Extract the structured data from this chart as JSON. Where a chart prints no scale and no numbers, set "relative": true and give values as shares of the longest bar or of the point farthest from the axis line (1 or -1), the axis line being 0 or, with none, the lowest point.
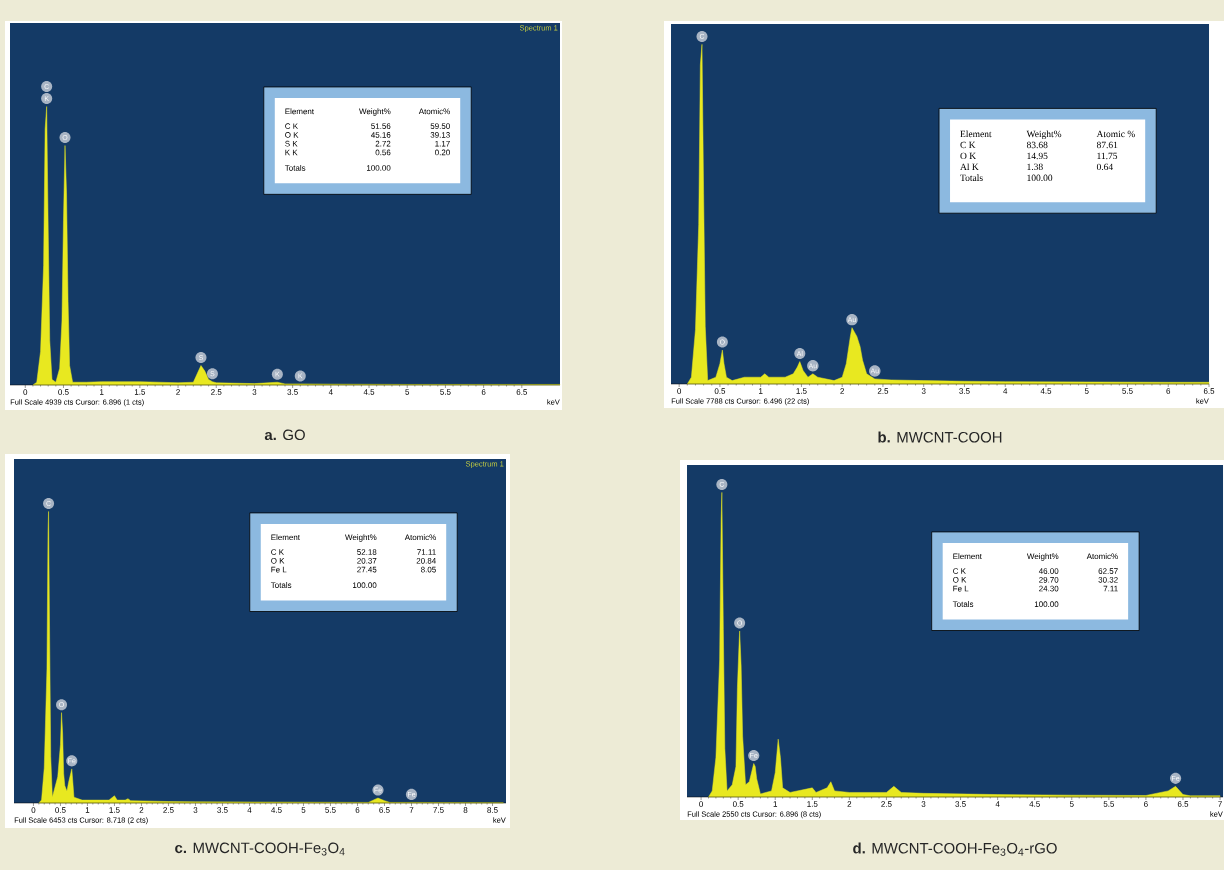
{
  "chart_data": [
    {
      "type": "area",
      "title": "**a.** GO",
      "subtitle": "Spectrum 1",
      "xlabel": "keV",
      "relative": true,
      "color": "#e8e820",
      "xlim": [
        -0.2,
        7.0
      ],
      "xticks": [
        0,
        0.5,
        1,
        1.5,
        2,
        2.5,
        3,
        3.5,
        4,
        4.5,
        5,
        5.5,
        6,
        6.5
      ],
      "x": [
        0.1,
        0.15,
        0.2,
        0.24,
        0.26,
        0.28,
        0.3,
        0.32,
        0.35,
        0.4,
        0.45,
        0.48,
        0.5,
        0.52,
        0.54,
        0.56,
        0.58,
        0.62,
        0.8,
        1.0,
        1.5,
        2.0,
        2.2,
        2.25,
        2.3,
        2.35,
        2.4,
        2.45,
        2.5,
        3.0,
        3.3,
        3.4,
        3.6,
        4.0,
        5.0,
        6.0,
        7.0
      ],
      "values": [
        0.0,
        0.01,
        0.12,
        0.43,
        0.92,
        1.0,
        0.56,
        0.16,
        0.02,
        0.01,
        0.06,
        0.23,
        0.59,
        0.86,
        0.69,
        0.3,
        0.07,
        0.01,
        0.01,
        0.012,
        0.012,
        0.008,
        0.01,
        0.04,
        0.07,
        0.05,
        0.02,
        0.012,
        0.008,
        0.005,
        0.01,
        0.004,
        0.004,
        0.003,
        0.002,
        0.002,
        0.002
      ],
      "annotations": [
        {
          "text": "K",
          "x": 0.28,
          "y": 1.0
        },
        {
          "text": "C",
          "x": 0.28,
          "y": 1.0
        },
        {
          "text": "O",
          "x": 0.52,
          "y": 0.86
        },
        {
          "text": "S",
          "x": 2.3,
          "y": 0.07
        },
        {
          "text": "S",
          "x": 2.45,
          "y": 0.012
        },
        {
          "text": "K",
          "x": 3.3,
          "y": 0.01
        },
        {
          "text": "K",
          "x": 3.6,
          "y": 0.004
        },
        "Full Scale 4939 cts Cursor: 6.896 (1 cts)",
        "Element",
        "Weight%",
        "Atomic%",
        "C K",
        "51.56",
        "59.50",
        "O K",
        "45.16",
        "39.13",
        "S K",
        "2.72",
        "1.17",
        "K K",
        "0.56",
        "0.20",
        "Totals",
        "100.00"
      ]
    },
    {
      "type": "area",
      "title": "**b.** MWCNT-COOH",
      "xlabel": "keV",
      "relative": true,
      "color": "#e8e820",
      "xlim": [
        -0.1,
        6.5
      ],
      "xticks": [
        0,
        0.5,
        1,
        1.5,
        2,
        2.5,
        3,
        3.5,
        4,
        4.5,
        5,
        5.5,
        6,
        6.5
      ],
      "x": [
        0.1,
        0.15,
        0.2,
        0.24,
        0.26,
        0.28,
        0.3,
        0.32,
        0.35,
        0.45,
        0.5,
        0.53,
        0.55,
        0.58,
        0.65,
        0.8,
        1.0,
        1.05,
        1.1,
        1.3,
        1.4,
        1.45,
        1.48,
        1.52,
        1.58,
        1.64,
        1.7,
        1.9,
        2.0,
        2.05,
        2.1,
        2.12,
        2.18,
        2.22,
        2.25,
        2.3,
        2.4,
        2.6,
        3.0,
        3.5,
        4.0,
        5.0,
        6.0,
        6.5
      ],
      "values": [
        0.0,
        0.02,
        0.16,
        0.47,
        0.94,
        1.0,
        0.56,
        0.17,
        0.01,
        0.02,
        0.06,
        0.1,
        0.06,
        0.02,
        0.01,
        0.02,
        0.02,
        0.03,
        0.02,
        0.02,
        0.03,
        0.05,
        0.066,
        0.04,
        0.02,
        0.03,
        0.02,
        0.01,
        0.02,
        0.06,
        0.14,
        0.166,
        0.14,
        0.11,
        0.07,
        0.03,
        0.015,
        0.012,
        0.01,
        0.008,
        0.007,
        0.006,
        0.005,
        0.005
      ],
      "annotations": [
        {
          "text": "C",
          "x": 0.28,
          "y": 1.0
        },
        {
          "text": "O",
          "x": 0.53,
          "y": 0.1
        },
        {
          "text": "Al",
          "x": 1.48,
          "y": 0.066
        },
        {
          "text": "Au",
          "x": 1.64,
          "y": 0.03
        },
        {
          "text": "Au",
          "x": 2.12,
          "y": 0.166
        },
        {
          "text": "Au",
          "x": 2.4,
          "y": 0.015
        },
        "Full Scale 7788 cts Cursor: 6.496 (22 cts)",
        "Element",
        "Weight%",
        "Atomic %",
        "C K",
        "83.68",
        "87.61",
        "O K",
        "14.95",
        "11.75",
        "Al K",
        "1.38",
        "0.64",
        "Totals",
        "100.00"
      ]
    },
    {
      "type": "area",
      "title": "**c.** MWCNT-COOH-Fe$_{3}$O$_{4}$",
      "subtitle": "Spectrum 1",
      "xlabel": "keV",
      "relative": true,
      "color": "#e8e820",
      "xlim": [
        -0.36,
        8.75
      ],
      "xticks": [
        0,
        0.5,
        1,
        1.5,
        2,
        2.5,
        3,
        3.5,
        4,
        4.5,
        5,
        5.5,
        6,
        6.5,
        7,
        7.5,
        8,
        8.5
      ],
      "x": [
        0.1,
        0.15,
        0.2,
        0.25,
        0.27,
        0.28,
        0.3,
        0.32,
        0.35,
        0.45,
        0.5,
        0.52,
        0.54,
        0.56,
        0.58,
        0.62,
        0.65,
        0.71,
        0.73,
        0.75,
        0.9,
        1.4,
        1.5,
        1.55,
        1.7,
        1.75,
        1.8,
        2.5,
        3.0,
        6.2,
        6.35,
        6.38,
        6.5,
        6.6,
        7.0,
        8.7
      ],
      "values": [
        0.0,
        0.01,
        0.12,
        0.46,
        0.93,
        1.0,
        0.56,
        0.16,
        0.02,
        0.09,
        0.2,
        0.31,
        0.24,
        0.1,
        0.06,
        0.04,
        0.07,
        0.117,
        0.07,
        0.02,
        0.01,
        0.01,
        0.025,
        0.01,
        0.01,
        0.015,
        0.008,
        0.005,
        0.004,
        0.002,
        0.015,
        0.017,
        0.008,
        0.002,
        0.002,
        0.001
      ],
      "annotations": [
        {
          "text": "C",
          "x": 0.28,
          "y": 1.0
        },
        {
          "text": "O",
          "x": 0.52,
          "y": 0.31
        },
        {
          "text": "Fe",
          "x": 0.71,
          "y": 0.117
        },
        {
          "text": "Fe",
          "x": 6.38,
          "y": 0.017
        },
        {
          "text": "Fe",
          "x": 7.0,
          "y": 0.002
        },
        "Full Scale 6453 cts Cursor: 8.718 (2 cts)",
        "Element",
        "Weight%",
        "Atomic%",
        "C K",
        "52.18",
        "71.11",
        "O K",
        "20.37",
        "20.84",
        "Fe L",
        "27.45",
        "8.05",
        "Totals",
        "100.00"
      ]
    },
    {
      "type": "area",
      "title": "**d.** MWCNT-COOH-Fe$_{3}$O$_{4}$-rGO",
      "xlabel": "keV",
      "relative": true,
      "color": "#e8e820",
      "xlim": [
        -0.19,
        7.04
      ],
      "xticks": [
        0,
        0.5,
        1,
        1.5,
        2,
        2.5,
        3,
        3.5,
        4,
        4.5,
        5,
        5.5,
        6,
        6.5,
        7
      ],
      "x": [
        0.1,
        0.15,
        0.2,
        0.25,
        0.27,
        0.28,
        0.3,
        0.32,
        0.35,
        0.42,
        0.47,
        0.49,
        0.51,
        0.52,
        0.54,
        0.56,
        0.6,
        0.65,
        0.71,
        0.73,
        0.75,
        0.8,
        0.95,
        1.0,
        1.04,
        1.07,
        1.1,
        1.2,
        1.5,
        1.55,
        1.7,
        1.75,
        1.8,
        2.0,
        2.5,
        2.6,
        2.7,
        3.0,
        4.0,
        5.0,
        6.0,
        6.3,
        6.4,
        6.5,
        6.6,
        7.0
      ],
      "values": [
        0.0,
        0.02,
        0.13,
        0.45,
        0.91,
        1.0,
        0.55,
        0.16,
        0.02,
        0.04,
        0.1,
        0.36,
        0.49,
        0.545,
        0.43,
        0.2,
        0.04,
        0.05,
        0.11,
        0.1,
        0.06,
        0.01,
        0.02,
        0.08,
        0.19,
        0.13,
        0.03,
        0.015,
        0.03,
        0.015,
        0.03,
        0.05,
        0.02,
        0.015,
        0.015,
        0.035,
        0.015,
        0.012,
        0.008,
        0.006,
        0.005,
        0.02,
        0.035,
        0.008,
        0.004,
        0.004
      ],
      "annotations": [
        {
          "text": "C",
          "x": 0.28,
          "y": 1.0
        },
        {
          "text": "O",
          "x": 0.52,
          "y": 0.545
        },
        {
          "text": "Fe",
          "x": 0.71,
          "y": 0.11
        },
        {
          "text": "Fe",
          "x": 6.4,
          "y": 0.035
        },
        "Full Scale 2550 cts Cursor: 6.896 (8 cts)",
        "Element",
        "Weight%",
        "Atomic%",
        "C K",
        "46.00",
        "62.57",
        "O K",
        "29.70",
        "30.32",
        "Fe L",
        "24.30",
        "7.11",
        "Totals",
        "100.00"
      ]
    }
  ]
}
